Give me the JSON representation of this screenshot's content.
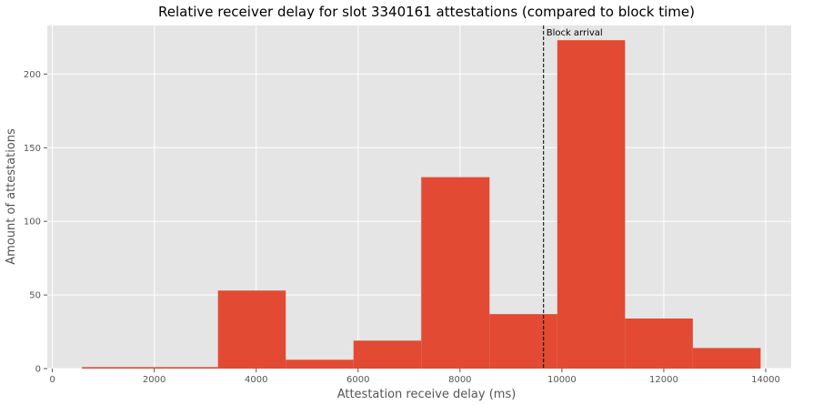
{
  "chart_data": {
    "type": "bar",
    "title": "Relative receiver delay for slot 3340161 attestations (compared to block time)",
    "xlabel": "Attestation receive delay (ms)",
    "ylabel": "Amount of attestations",
    "xlim": [
      -100,
      14500
    ],
    "ylim": [
      0,
      233
    ],
    "x_ticks": [
      0,
      2000,
      4000,
      6000,
      8000,
      10000,
      12000,
      14000
    ],
    "y_ticks": [
      0,
      50,
      100,
      150,
      200
    ],
    "grid": true,
    "bins": [
      {
        "start": 580,
        "end": 1910,
        "count": 1
      },
      {
        "start": 1910,
        "end": 3250,
        "count": 1
      },
      {
        "start": 3250,
        "end": 4580,
        "count": 53
      },
      {
        "start": 4580,
        "end": 5910,
        "count": 6
      },
      {
        "start": 5910,
        "end": 7240,
        "count": 19
      },
      {
        "start": 7240,
        "end": 8580,
        "count": 130
      },
      {
        "start": 8580,
        "end": 9910,
        "count": 37
      },
      {
        "start": 9910,
        "end": 11240,
        "count": 223
      },
      {
        "start": 11240,
        "end": 12570,
        "count": 34
      },
      {
        "start": 12570,
        "end": 13900,
        "count": 14
      }
    ],
    "bar_color": "#E24A33",
    "reference_line": {
      "x": 9640,
      "label": "Block arrival"
    }
  }
}
